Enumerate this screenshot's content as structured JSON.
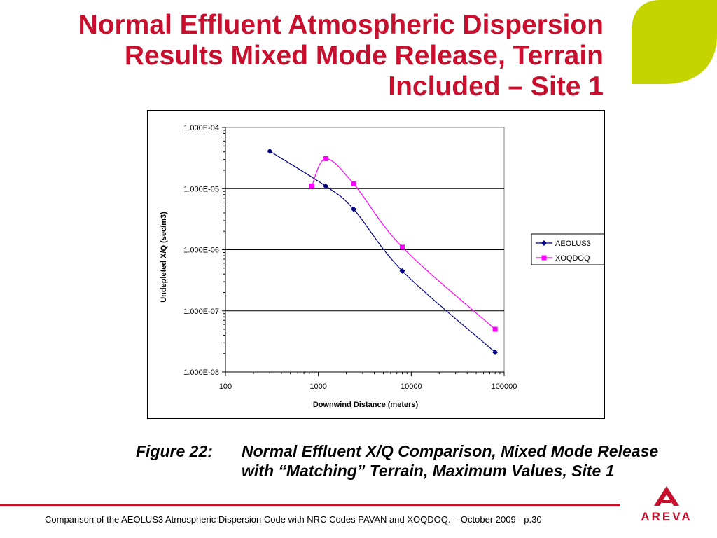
{
  "slide": {
    "title_lines": [
      "Normal Effluent Atmospheric Dispersion",
      "Results Mixed Mode Release, Terrain",
      "Included – Site 1"
    ],
    "caption_label": "Figure 22:",
    "caption_text": "Normal Effluent X/Q Comparison, Mixed Mode Release with “Matching” Terrain, Maximum Values, Site 1",
    "footer": "Comparison of the AEOLUS3 Atmospheric Dispersion Code with NRC Codes PAVAN and XOQDOQ. – October 2009 - p.30",
    "logo_text": "AREVA",
    "colors": {
      "accent": "#c8102e",
      "leaf": "#c5d300"
    }
  },
  "chart_data": {
    "type": "line",
    "xlabel": "Downwind Distance (meters)",
    "ylabel": "Undepleted X/Q (sec/m3)",
    "xscale": "log",
    "yscale": "log",
    "xlim": [
      100,
      100000
    ],
    "ylim": [
      1e-08,
      0.0001
    ],
    "x_tick_labels": [
      "100",
      "1000",
      "10000",
      "100000"
    ],
    "y_tick_labels": [
      "1.000E-04",
      "1.000E-05",
      "1.000E-06",
      "1.000E-07",
      "1.000E-08"
    ],
    "grid": "horizontal major",
    "legend_position": "right",
    "series": [
      {
        "name": "AEOLUS3",
        "color": "#000080",
        "marker": "diamond",
        "x": [
          300,
          1200,
          2400,
          8000,
          80000
        ],
        "y": [
          4.1e-05,
          1.1e-05,
          4.6e-06,
          4.5e-07,
          2.1e-08
        ]
      },
      {
        "name": "XOQDOQ",
        "color": "#ff00ff",
        "marker": "square",
        "x": [
          850,
          1200,
          2400,
          8000,
          80000
        ],
        "y": [
          1.1e-05,
          3.1e-05,
          1.2e-05,
          1.1e-06,
          5e-08
        ]
      }
    ]
  }
}
